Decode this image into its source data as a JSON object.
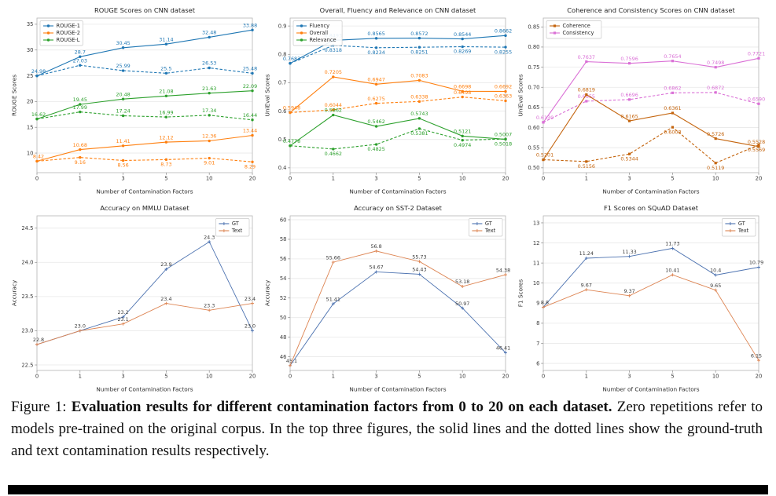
{
  "caption": {
    "prefix": "Figure 1: ",
    "bold": "Evaluation results for different contamination factors from 0 to 20 on each dataset.",
    "rest": " Zero repetitions refer to models pre-trained on the original corpus. In the top three figures, the solid lines and the dotted lines show the ground-truth and text contamination results respectively."
  },
  "chart_data": [
    {
      "type": "line",
      "title": "ROUGE Scores on CNN dataset",
      "xlabel": "Number of Contamination Factors",
      "ylabel": "ROUGE Scores",
      "x_ticklabels": [
        "0",
        "1",
        "3",
        "5",
        "10",
        "20"
      ],
      "ylim": [
        6.2,
        36.2
      ],
      "yticks": [
        10,
        15,
        20,
        25,
        30,
        35
      ],
      "ytick_labels": [
        "10",
        "15",
        "20",
        "25",
        "30",
        "35"
      ],
      "grid": true,
      "legend": {
        "position": "upper-left",
        "entries": [
          {
            "label": "ROUGE-1",
            "color": "#1f77b4",
            "marker": "circle"
          },
          {
            "label": "ROUGE-2",
            "color": "#ff7f0e",
            "marker": "circle"
          },
          {
            "label": "ROUGE-L",
            "color": "#2ca02c",
            "marker": "circle"
          }
        ]
      },
      "series": [
        {
          "name": "ROUGE-1 GT",
          "color": "#1f77b4",
          "dashed": false,
          "marker": "circle",
          "label_side": "above",
          "values": [
            24.98,
            28.7,
            30.45,
            31.14,
            32.48,
            33.88
          ],
          "labels": [
            "24.98",
            "28.7",
            "30.45",
            "31.14",
            "32.48",
            "33.88"
          ]
        },
        {
          "name": "ROUGE-1 Text",
          "color": "#1f77b4",
          "dashed": true,
          "marker": "circle",
          "label_side": "above",
          "values": [
            24.98,
            27.03,
            25.99,
            25.5,
            26.53,
            25.48
          ],
          "labels": [
            null,
            "27.03",
            "25.99",
            "25.5",
            "26.53",
            "25.48"
          ]
        },
        {
          "name": "ROUGE-L GT",
          "color": "#2ca02c",
          "dashed": false,
          "marker": "circle",
          "label_side": "above",
          "values": [
            16.62,
            19.45,
            20.48,
            21.08,
            21.63,
            22.09
          ],
          "labels": [
            "16.62",
            "19.45",
            "20.48",
            "21.08",
            "21.63",
            "22.09"
          ]
        },
        {
          "name": "ROUGE-L Text",
          "color": "#2ca02c",
          "dashed": true,
          "marker": "circle",
          "label_side": "above",
          "values": [
            16.62,
            17.99,
            17.24,
            16.99,
            17.34,
            16.44
          ],
          "labels": [
            null,
            "17.99",
            "17.24",
            "16.99",
            "17.34",
            "16.44"
          ]
        },
        {
          "name": "ROUGE-2 GT",
          "color": "#ff7f0e",
          "dashed": false,
          "marker": "circle",
          "label_side": "above",
          "values": [
            8.42,
            10.68,
            11.41,
            12.12,
            12.36,
            13.44
          ],
          "labels": [
            "8.42",
            "10.68",
            "11.41",
            "12.12",
            "12.36",
            "13.44"
          ]
        },
        {
          "name": "ROUGE-2 Text",
          "color": "#ff7f0e",
          "dashed": true,
          "marker": "circle",
          "label_side": "below",
          "values": [
            8.42,
            9.16,
            8.56,
            8.73,
            9.01,
            8.29
          ],
          "labels": [
            null,
            "9.16",
            "8.56",
            "8.73",
            "9.01",
            "8.29"
          ]
        }
      ]
    },
    {
      "type": "line",
      "title": "Overall, Fluency and Relevance on CNN dataset",
      "xlabel": "Number of Contamination Factors",
      "ylabel": "UniEval Scores",
      "x_ticklabels": [
        "0",
        "1",
        "3",
        "5",
        "10",
        "20"
      ],
      "ylim": [
        0.383,
        0.928
      ],
      "yticks": [
        0.4,
        0.5,
        0.6,
        0.7,
        0.8,
        0.9
      ],
      "ytick_labels": [
        "0.4",
        "0.5",
        "0.6",
        "0.7",
        "0.8",
        "0.9"
      ],
      "grid": true,
      "legend": {
        "position": "upper-left",
        "entries": [
          {
            "label": "Fluency",
            "color": "#1f77b4",
            "marker": "circle"
          },
          {
            "label": "Overall",
            "color": "#ff7f0e",
            "marker": "circle"
          },
          {
            "label": "Relevance",
            "color": "#2ca02c",
            "marker": "circle"
          }
        ]
      },
      "series": [
        {
          "name": "Fluency GT",
          "color": "#1f77b4",
          "dashed": false,
          "marker": "circle",
          "label_side": "above",
          "values": [
            0.7683,
            0.8493,
            0.8565,
            0.8572,
            0.8544,
            0.8662
          ],
          "labels": [
            "0.7683",
            "0.8493",
            "0.8565",
            "0.8572",
            "0.8544",
            "0.8662"
          ]
        },
        {
          "name": "Fluency Text",
          "color": "#1f77b4",
          "dashed": true,
          "marker": "circle",
          "label_side": "below",
          "values": [
            0.7683,
            0.8318,
            0.8234,
            0.8251,
            0.8269,
            0.8255
          ],
          "labels": [
            null,
            "0.8318",
            "0.8234",
            "0.8251",
            "0.8269",
            "0.8255"
          ]
        },
        {
          "name": "Overall GT",
          "color": "#ff7f0e",
          "dashed": false,
          "marker": "circle",
          "label_side": "above",
          "values": [
            0.5948,
            0.7205,
            0.6947,
            0.7083,
            0.6698,
            0.6692
          ],
          "labels": [
            "0.5948",
            "0.7205",
            "0.6947",
            "0.7083",
            "0.6698",
            "0.6692"
          ]
        },
        {
          "name": "Overall Text",
          "color": "#ff7f0e",
          "dashed": true,
          "marker": "circle",
          "label_side": "above",
          "values": [
            0.5948,
            0.6044,
            0.6275,
            0.6338,
            0.6498,
            0.6363
          ],
          "labels": [
            null,
            "0.6044",
            "0.6275",
            "0.6338",
            "0.6498",
            "0.6363"
          ]
        },
        {
          "name": "Relevance GT",
          "color": "#2ca02c",
          "dashed": false,
          "marker": "circle",
          "label_side": "above",
          "values": [
            0.4778,
            0.5862,
            0.5462,
            0.5743,
            0.5121,
            0.5007
          ],
          "labels": [
            "0.4778",
            "0.5862",
            "0.5462",
            "0.5743",
            "0.5121",
            "0.5007"
          ]
        },
        {
          "name": "Relevance Text",
          "color": "#2ca02c",
          "dashed": true,
          "marker": "circle",
          "label_side": "below",
          "values": [
            0.4778,
            0.4662,
            0.4825,
            0.5381,
            0.4974,
            0.5018
          ],
          "labels": [
            null,
            "0.4662",
            "0.4825",
            "0.5381",
            "0.4974",
            "0.5018"
          ]
        }
      ]
    },
    {
      "type": "line",
      "title": "Coherence and Consistency Scores on CNN dataset",
      "xlabel": "Number of Contamination Factors",
      "ylabel": "UniEval Scores",
      "x_ticklabels": [
        "0",
        "1",
        "3",
        "5",
        "10",
        "20"
      ],
      "ylim": [
        0.488,
        0.872
      ],
      "yticks": [
        0.5,
        0.55,
        0.6,
        0.65,
        0.7,
        0.75,
        0.8,
        0.85
      ],
      "ytick_labels": [
        "0.50",
        "0.55",
        "0.60",
        "0.65",
        "0.70",
        "0.75",
        "0.80",
        "0.85"
      ],
      "grid": true,
      "legend": {
        "position": "upper-left",
        "entries": [
          {
            "label": "Coherence",
            "color": "#c4640d",
            "marker": "square"
          },
          {
            "label": "Consistency",
            "color": "#da70d6",
            "marker": "square"
          }
        ]
      },
      "series": [
        {
          "name": "Consistency GT",
          "color": "#da70d6",
          "dashed": false,
          "marker": "square",
          "label_side": "above",
          "values": [
            0.613,
            0.7637,
            0.7596,
            0.7654,
            0.7498,
            0.7721
          ],
          "labels": [
            "0.6130",
            "0.7637",
            "0.7596",
            "0.7654",
            "0.7498",
            "0.7721"
          ]
        },
        {
          "name": "Consistency Text",
          "color": "#da70d6",
          "dashed": true,
          "marker": "square",
          "label_side": "above",
          "values": [
            0.613,
            0.6655,
            0.6696,
            0.6862,
            0.6872,
            0.659
          ],
          "labels": [
            null,
            "0.6655",
            "0.6696",
            "0.6862",
            "0.6872",
            "0.6590"
          ]
        },
        {
          "name": "Coherence GT",
          "color": "#c4640d",
          "dashed": false,
          "marker": "square",
          "label_side": "above",
          "values": [
            0.5201,
            0.6819,
            0.6165,
            0.6361,
            0.5726,
            0.5528
          ],
          "labels": [
            "0.5201",
            "0.6819",
            "0.6165",
            "0.6361",
            "0.5726",
            "0.5528"
          ]
        },
        {
          "name": "Coherence Text",
          "color": "#c4640d",
          "dashed": true,
          "marker": "square",
          "label_side": "below",
          "values": [
            0.5201,
            0.5156,
            0.5344,
            0.6008,
            0.5119,
            0.5569
          ],
          "labels": [
            null,
            "0.5156",
            "0.5344",
            "0.6008",
            "0.5119",
            "0.5569"
          ]
        }
      ]
    },
    {
      "type": "line",
      "title": "Accuracy on MMLU Dataset",
      "xlabel": "Number of Contamination Factors",
      "ylabel": "Accuracy",
      "x_ticklabels": [
        "0",
        "1",
        "3",
        "5",
        "10",
        "20"
      ],
      "ylim": [
        22.42,
        24.68
      ],
      "yticks": [
        22.5,
        23.0,
        23.5,
        24.0,
        24.5
      ],
      "ytick_labels": [
        "22.5",
        "23.0",
        "23.5",
        "24.0",
        "24.5"
      ],
      "grid": true,
      "legend": {
        "position": "upper-right",
        "entries": [
          {
            "label": "GT",
            "color": "#4c72b0",
            "marker": "plus"
          },
          {
            "label": "Text",
            "color": "#dd8452",
            "marker": "plus"
          }
        ]
      },
      "series": [
        {
          "name": "GT",
          "color": "#4c72b0",
          "dashed": false,
          "marker": "plus",
          "label_side": "above",
          "width": 0.9,
          "label_color": "#3a3a3a",
          "values": [
            22.8,
            23.0,
            23.2,
            23.9,
            24.3,
            23.0
          ],
          "labels": [
            "22.8",
            "23.0",
            "23.2",
            "23.9",
            "24.3",
            "23.0"
          ]
        },
        {
          "name": "Text",
          "color": "#dd8452",
          "dashed": false,
          "marker": "plus",
          "label_side": "above",
          "width": 0.9,
          "label_color": "#3a3a3a",
          "values": [
            22.8,
            23.0,
            23.1,
            23.4,
            23.3,
            23.4
          ],
          "labels": [
            null,
            null,
            "23.1",
            "23.4",
            "23.3",
            "23.4"
          ]
        }
      ]
    },
    {
      "type": "line",
      "title": "Accuracy on SST-2 Dataset",
      "xlabel": "Number of Contamination Factors",
      "ylabel": "Accuracy",
      "x_ticklabels": [
        "0",
        "1",
        "3",
        "5",
        "10",
        "20"
      ],
      "ylim": [
        44.6,
        60.4
      ],
      "yticks": [
        46,
        48,
        50,
        52,
        54,
        56,
        58,
        60
      ],
      "ytick_labels": [
        "46",
        "48",
        "50",
        "52",
        "54",
        "56",
        "58",
        "60"
      ],
      "grid": true,
      "legend": {
        "position": "upper-right",
        "entries": [
          {
            "label": "GT",
            "color": "#4c72b0",
            "marker": "plus"
          },
          {
            "label": "Text",
            "color": "#dd8452",
            "marker": "plus"
          }
        ]
      },
      "series": [
        {
          "name": "GT",
          "color": "#4c72b0",
          "dashed": false,
          "marker": "plus",
          "label_side": "above",
          "width": 0.9,
          "label_color": "#3a3a3a",
          "values": [
            45.1,
            51.41,
            54.67,
            54.43,
            50.97,
            46.41
          ],
          "labels": [
            "45.1",
            "51.41",
            "54.67",
            "54.43",
            "50.97",
            "46.41"
          ]
        },
        {
          "name": "Text",
          "color": "#dd8452",
          "dashed": false,
          "marker": "plus",
          "label_side": "above",
          "width": 0.9,
          "label_color": "#3a3a3a",
          "values": [
            45.1,
            55.66,
            56.8,
            55.73,
            53.18,
            54.38
          ],
          "labels": [
            null,
            "55.66",
            "56.8",
            "55.73",
            "53.18",
            "54.38"
          ]
        }
      ]
    },
    {
      "type": "line",
      "title": "F1 Scores on SQuAD Dataset",
      "xlabel": "Number of Contamination Factors",
      "ylabel": "F1 Scores",
      "x_ticklabels": [
        "0",
        "1",
        "3",
        "5",
        "10",
        "20"
      ],
      "ylim": [
        5.65,
        13.35
      ],
      "yticks": [
        6,
        7,
        8,
        9,
        10,
        11,
        12,
        13
      ],
      "ytick_labels": [
        "6",
        "7",
        "8",
        "9",
        "10",
        "11",
        "12",
        "13"
      ],
      "grid": true,
      "legend": {
        "position": "upper-right",
        "entries": [
          {
            "label": "GT",
            "color": "#4c72b0",
            "marker": "plus"
          },
          {
            "label": "Text",
            "color": "#dd8452",
            "marker": "plus"
          }
        ]
      },
      "series": [
        {
          "name": "GT",
          "color": "#4c72b0",
          "dashed": false,
          "marker": "plus",
          "label_side": "above",
          "width": 0.9,
          "label_color": "#3a3a3a",
          "values": [
            8.8,
            11.24,
            11.33,
            11.73,
            10.4,
            10.79
          ],
          "labels": [
            "8.8",
            "11.24",
            "11.33",
            "11.73",
            "10.4",
            "10.79"
          ]
        },
        {
          "name": "Text",
          "color": "#dd8452",
          "dashed": false,
          "marker": "plus",
          "label_side": "above",
          "width": 0.9,
          "label_color": "#3a3a3a",
          "values": [
            8.8,
            9.67,
            9.37,
            10.41,
            9.65,
            6.15
          ],
          "labels": [
            null,
            "9.67",
            "9.37",
            "10.41",
            "9.65",
            "6.15"
          ]
        }
      ]
    }
  ]
}
